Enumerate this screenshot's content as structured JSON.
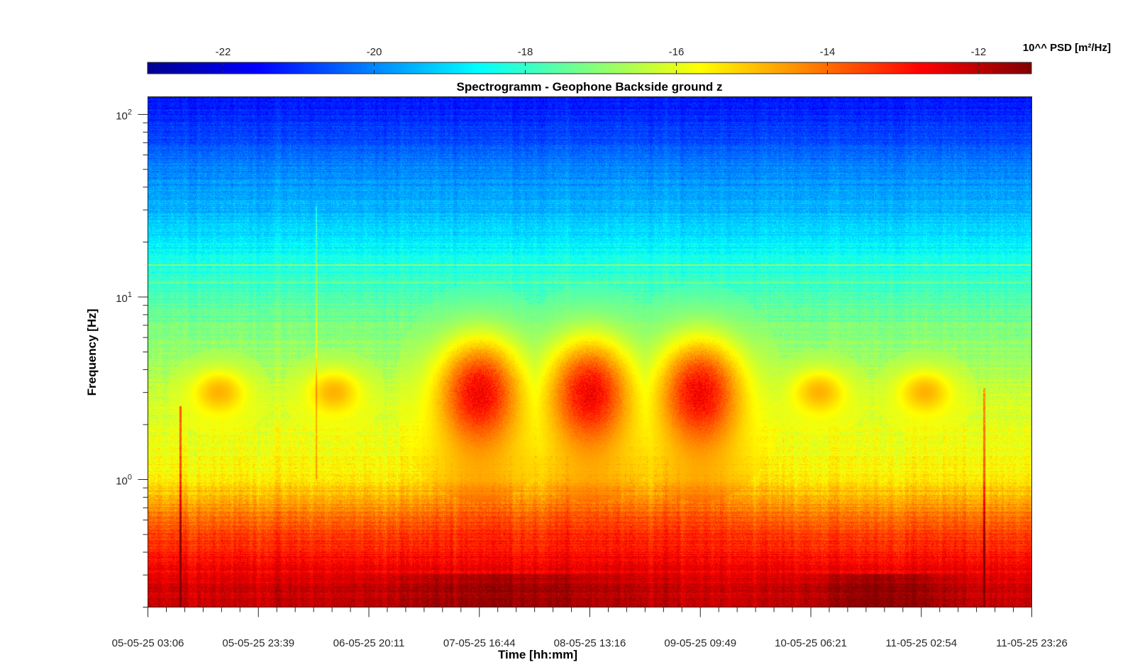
{
  "chart_data": {
    "type": "heatmap",
    "title": "Spectrogramm - Geophone Backside ground z",
    "xlabel": "Time [hh:mm]",
    "ylabel": "Frequency [Hz]",
    "x_tick_labels": [
      "05-05-25 03:06",
      "05-05-25 23:39",
      "06-05-25 20:11",
      "07-05-25 16:44",
      "08-05-25 13:16",
      "09-05-25 09:49",
      "10-05-25 06:21",
      "11-05-25 02:54",
      "11-05-25 23:26"
    ],
    "y_scale": "log",
    "ylim": [
      0.2,
      125
    ],
    "y_ticks": [
      {
        "value": 1,
        "base": "10",
        "exp": "0"
      },
      {
        "value": 10,
        "base": "10",
        "exp": "1"
      },
      {
        "value": 100,
        "base": "10",
        "exp": "2"
      }
    ],
    "colorbar": {
      "title": "10^^ PSD [m²/Hz]",
      "range": [
        -23,
        -11.3
      ],
      "ticks": [
        -22,
        -20,
        -18,
        -16,
        -14,
        -12
      ],
      "tick_labels": [
        "-22",
        "-20",
        "-18",
        "-16",
        "-14",
        "-12"
      ],
      "colormap": "jet",
      "placement": "top"
    },
    "psd_profile_by_frequency": [
      {
        "freq": 0.2,
        "log10_psd": -12.0
      },
      {
        "freq": 0.3,
        "log10_psd": -12.5
      },
      {
        "freq": 0.5,
        "log10_psd": -13.5
      },
      {
        "freq": 0.8,
        "log10_psd": -14.8
      },
      {
        "freq": 1.0,
        "log10_psd": -15.5
      },
      {
        "freq": 2.0,
        "log10_psd": -16.0
      },
      {
        "freq": 3.0,
        "log10_psd": -16.3
      },
      {
        "freq": 5.0,
        "log10_psd": -16.8
      },
      {
        "freq": 10,
        "log10_psd": -17.7
      },
      {
        "freq": 15,
        "log10_psd": -18.3
      },
      {
        "freq": 20,
        "log10_psd": -18.8
      },
      {
        "freq": 30,
        "log10_psd": -19.4
      },
      {
        "freq": 50,
        "log10_psd": -20.0
      },
      {
        "freq": 80,
        "log10_psd": -20.8
      },
      {
        "freq": 125,
        "log10_psd": -21.4
      }
    ],
    "daytime_activity_centers": [
      {
        "time": "07-05-25 16:44",
        "freq_hz": 3.0,
        "peak_log10_psd": -12.8
      },
      {
        "time": "08-05-25 13:16",
        "freq_hz": 3.0,
        "peak_log10_psd": -12.8
      },
      {
        "time": "09-05-25 09:49",
        "freq_hz": 3.0,
        "peak_log10_psd": -12.8
      }
    ],
    "grid": false
  }
}
